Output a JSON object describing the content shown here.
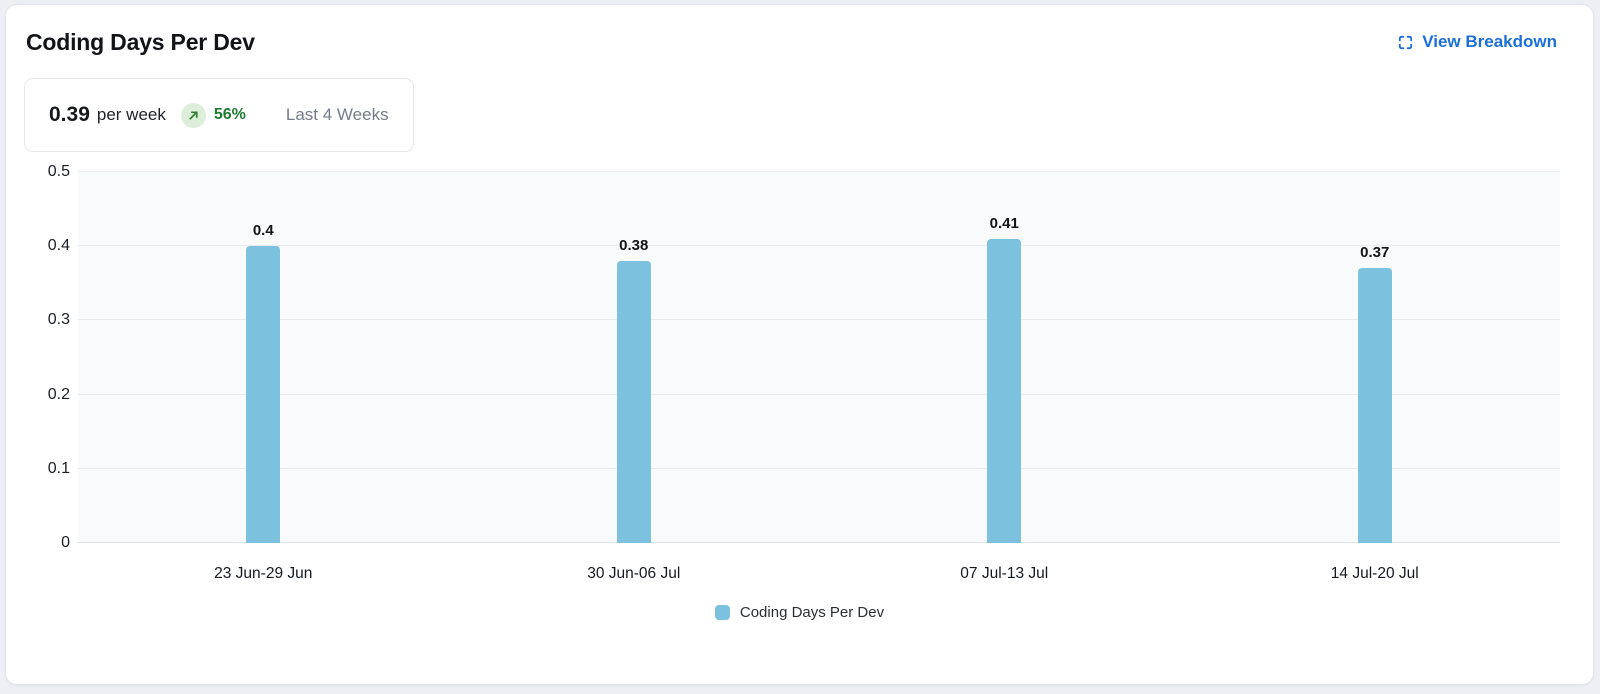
{
  "card": {
    "title": "Coding Days Per Dev",
    "view_breakdown_label": "View Breakdown"
  },
  "stat": {
    "value": "0.39",
    "unit": "per week",
    "trend_icon": "arrow-up-right-icon",
    "trend_percent": "56%",
    "period": "Last 4 Weeks"
  },
  "chart_data": {
    "type": "bar",
    "title": "Coding Days Per Dev",
    "categories": [
      "23 Jun-29 Jun",
      "30 Jun-06 Jul",
      "07 Jul-13 Jul",
      "14 Jul-20 Jul"
    ],
    "values": [
      0.4,
      0.38,
      0.41,
      0.37
    ],
    "value_labels": [
      "0.4",
      "0.38",
      "0.41",
      "0.37"
    ],
    "xlabel": "",
    "ylabel": "",
    "ylim": [
      0,
      0.5
    ],
    "y_ticks": [
      0,
      0.1,
      0.2,
      0.3,
      0.4,
      0.5
    ],
    "y_tick_labels": [
      "0",
      "0.1",
      "0.2",
      "0.3",
      "0.4",
      "0.5"
    ],
    "grid": true,
    "legend_position": "bottom",
    "bar_color": "#7cc1dd",
    "legend": [
      {
        "label": "Coding Days Per Dev",
        "color": "#7cc1dd"
      }
    ]
  },
  "colors": {
    "bar": "#7cc1dd",
    "link_blue": "#1b6fd8",
    "trend_green": "#1e7c32",
    "trend_badge_bg": "#ddeeda",
    "plot_bg": "#f9fafc",
    "gridline": "#e9ebf0",
    "muted_text": "#757c8a"
  }
}
